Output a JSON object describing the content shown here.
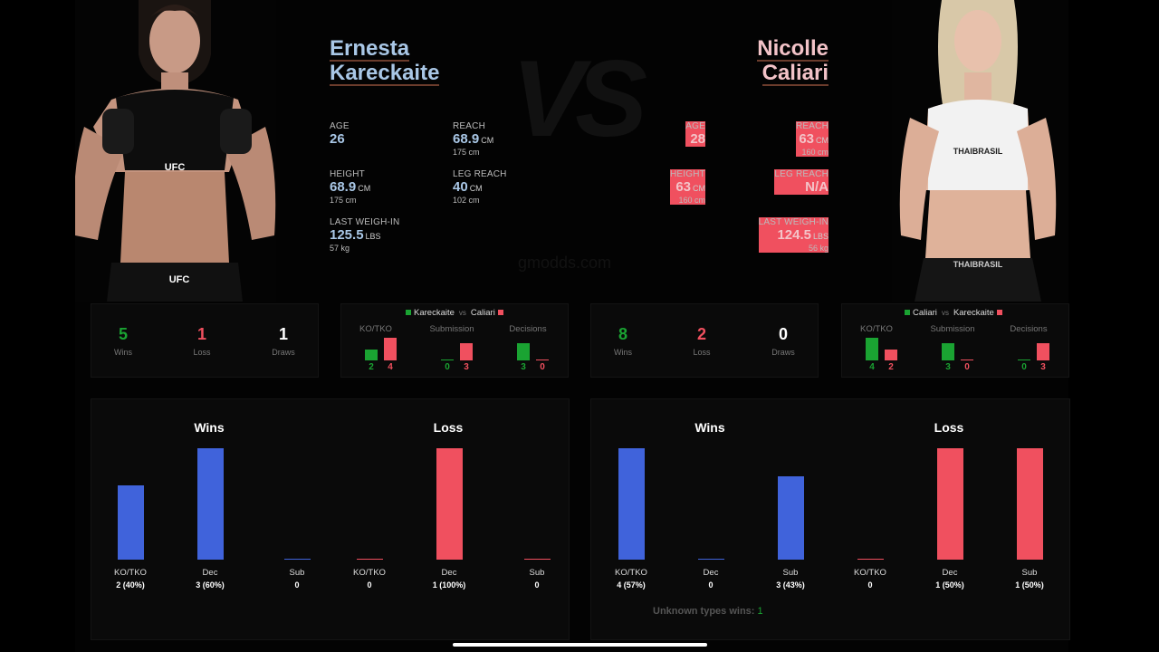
{
  "watermark": {
    "vs": "VS",
    "site": "gmodds.com"
  },
  "fighter_a": {
    "name_line1": "Ernesta",
    "name_line2": "Kareckaite",
    "age_label": "AGE",
    "age": "26",
    "reach_label": "REACH",
    "reach": "68.9",
    "reach_unit": "CM",
    "reach_sub": "175 cm",
    "height_label": "HEIGHT",
    "height": "68.9",
    "height_unit": "CM",
    "height_sub": "175 cm",
    "leg_reach_label": "LEG REACH",
    "leg_reach": "40",
    "leg_reach_unit": "CM",
    "leg_reach_sub": "102 cm",
    "weigh_label": "LAST WEIGH-IN",
    "weigh": "125.5",
    "weigh_unit": "LBS",
    "weigh_sub": "57 kg",
    "wins": "5",
    "wins_label": "Wins",
    "loss": "1",
    "loss_label": "Loss",
    "draws": "1",
    "draws_label": "Draws"
  },
  "fighter_b": {
    "name_line1": "Nicolle",
    "name_line2": "Caliari",
    "age_label": "AGE",
    "age": "28",
    "reach_label": "REACH",
    "reach": "63",
    "reach_unit": "CM",
    "reach_sub": "160 cm",
    "height_label": "HEIGHT",
    "height": "63",
    "height_unit": "CM",
    "height_sub": "160 cm",
    "leg_reach_label": "LEG REACH",
    "leg_reach": "N/A",
    "weigh_label": "LAST WEIGH-IN",
    "weigh": "124.5",
    "weigh_unit": "LBS",
    "weigh_sub": "56 kg",
    "wins": "8",
    "wins_label": "Wins",
    "loss": "2",
    "loss_label": "Loss",
    "draws": "0",
    "draws_label": "Draws"
  },
  "comparison_a": {
    "legend_green": "Kareckaite",
    "legend_vs": "vs",
    "legend_red": "Caliari",
    "groups": [
      {
        "label": "KO/TKO",
        "green": 2,
        "red": 4
      },
      {
        "label": "Submission",
        "green": 0,
        "red": 3
      },
      {
        "label": "Decisions",
        "green": 3,
        "red": 0
      }
    ]
  },
  "comparison_b": {
    "legend_green": "Caliari",
    "legend_vs": "vs",
    "legend_red": "Kareckaite",
    "groups": [
      {
        "label": "KO/TKO",
        "green": 4,
        "red": 2
      },
      {
        "label": "Submission",
        "green": 3,
        "red": 0
      },
      {
        "label": "Decisions",
        "green": 0,
        "red": 3
      }
    ]
  },
  "chart_data": [
    {
      "type": "bar",
      "title": "Wins",
      "categories": [
        "KO/TKO",
        "Dec",
        "Sub"
      ],
      "values": [
        2,
        3,
        0
      ],
      "value_labels": [
        "2 (40%)",
        "3 (60%)",
        "0"
      ],
      "ylim": [
        0,
        3
      ],
      "color": "#4063db"
    },
    {
      "type": "bar",
      "title": "Loss",
      "categories": [
        "KO/TKO",
        "Dec",
        "Sub"
      ],
      "values": [
        0,
        1,
        0
      ],
      "value_labels": [
        "0",
        "1 (100%)",
        "0"
      ],
      "ylim": [
        0,
        1
      ],
      "color": "#f0505f"
    },
    {
      "type": "bar",
      "title": "Wins",
      "categories": [
        "KO/TKO",
        "Dec",
        "Sub"
      ],
      "values": [
        4,
        0,
        3
      ],
      "value_labels": [
        "4 (57%)",
        "0",
        "3 (43%)"
      ],
      "ylim": [
        0,
        4
      ],
      "color": "#4063db"
    },
    {
      "type": "bar",
      "title": "Loss",
      "categories": [
        "KO/TKO",
        "Dec",
        "Sub"
      ],
      "values": [
        0,
        1,
        1
      ],
      "value_labels": [
        "0",
        "1 (50%)",
        "1 (50%)"
      ],
      "ylim": [
        0,
        1
      ],
      "color": "#f0505f"
    }
  ],
  "unknown_wins": {
    "label": "Unknown types wins:",
    "value": "1"
  },
  "colors": {
    "green": "#1aa332",
    "red": "#f0505f",
    "blue": "#4063db"
  }
}
